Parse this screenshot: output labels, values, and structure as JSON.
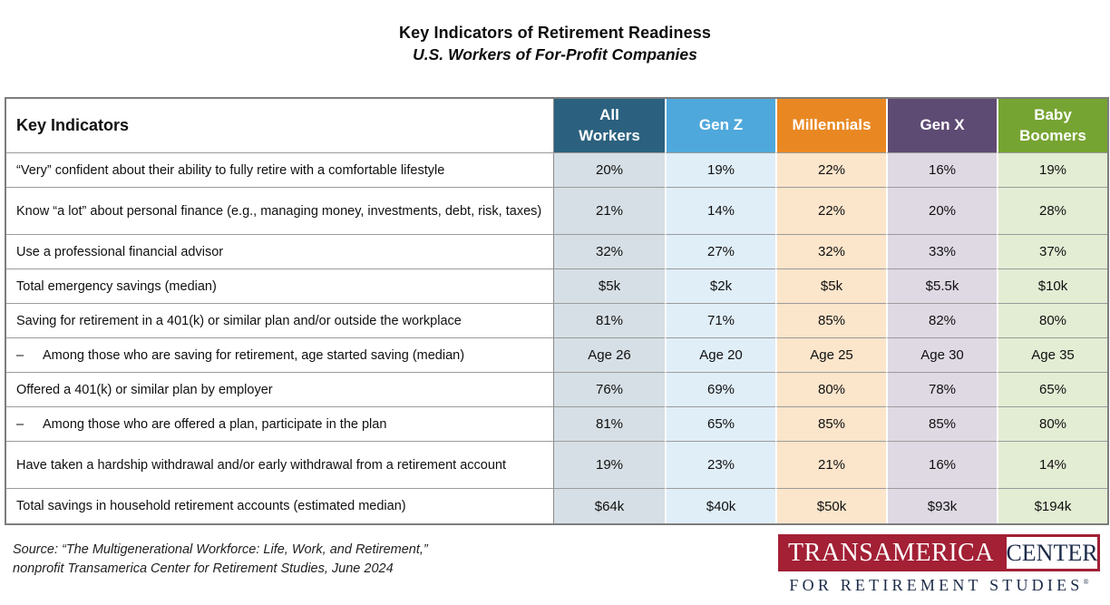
{
  "chart_data": {
    "type": "table",
    "title": "Key Indicators of Retirement Readiness",
    "subtitle": "U.S. Workers of For-Profit Companies",
    "row_header": "Key Indicators",
    "columns": [
      "All Workers",
      "Gen Z",
      "Millennials",
      "Gen X",
      "Baby Boomers"
    ],
    "rows": [
      {
        "prefix": "",
        "indicator": "“Very” confident about their ability to fully retire with a comfortable lifestyle",
        "values": [
          "20%",
          "19%",
          "22%",
          "16%",
          "19%"
        ]
      },
      {
        "prefix": "",
        "indicator": "Know “a lot” about personal finance (e.g., managing money, investments, debt, risk, taxes)",
        "values": [
          "21%",
          "14%",
          "22%",
          "20%",
          "28%"
        ]
      },
      {
        "prefix": "",
        "indicator": "Use a professional financial advisor",
        "values": [
          "32%",
          "27%",
          "32%",
          "33%",
          "37%"
        ]
      },
      {
        "prefix": "",
        "indicator": "Total emergency savings (median)",
        "values": [
          "$5k",
          "$2k",
          "$5k",
          "$5.5k",
          "$10k"
        ]
      },
      {
        "prefix": "",
        "indicator": "Saving for retirement in a 401(k) or similar plan and/or outside the workplace",
        "values": [
          "81%",
          "71%",
          "85%",
          "82%",
          "80%"
        ]
      },
      {
        "prefix": "–",
        "indicator": "Among those who are saving for retirement, age started saving (median)",
        "values": [
          "Age 26",
          "Age 20",
          "Age 25",
          "Age 30",
          "Age 35"
        ]
      },
      {
        "prefix": "",
        "indicator": "Offered a 401(k) or similar plan by employer",
        "values": [
          "76%",
          "69%",
          "80%",
          "78%",
          "65%"
        ]
      },
      {
        "prefix": "–",
        "indicator": "Among those who are offered a plan, participate in the plan",
        "values": [
          "81%",
          "65%",
          "85%",
          "85%",
          "80%"
        ]
      },
      {
        "prefix": "",
        "indicator": "Have taken a hardship withdrawal and/or early withdrawal from a retirement account",
        "values": [
          "19%",
          "23%",
          "21%",
          "16%",
          "14%"
        ]
      },
      {
        "prefix": "",
        "indicator": "Total savings in household retirement accounts (estimated median)",
        "values": [
          "$64k",
          "$40k",
          "$50k",
          "$93k",
          "$194k"
        ]
      }
    ]
  },
  "styles": {
    "header_colors": [
      "#2B617F",
      "#4FA8DB",
      "#E98823",
      "#5E4B73",
      "#76A432"
    ],
    "cell_colors": [
      "#D6DFE5",
      "#E0EEF8",
      "#FBE5CB",
      "#DFD9E4",
      "#E3EDD4"
    ],
    "header_text_color": "#FFFFFF",
    "brand_red": "#A32035",
    "brand_navy": "#1C2B49"
  },
  "source": {
    "line1": "Source: “The Multigenerational Workforce: Life, Work, and Retirement,”",
    "line2": "nonprofit Transamerica Center for Retirement Studies, June 2024"
  },
  "logo": {
    "brand": "TRANSAMERICA",
    "brand_suffix": "CENTER",
    "tagline": "FOR RETIREMENT STUDIES",
    "registered_mark": "®"
  }
}
